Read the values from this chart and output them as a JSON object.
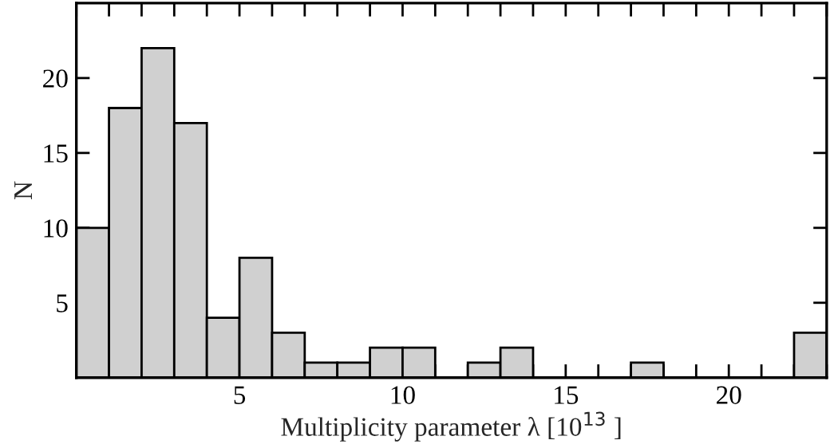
{
  "chart_data": {
    "type": "histogram",
    "bins": [
      0,
      1,
      2,
      3,
      4,
      5,
      6,
      7,
      8,
      9,
      10,
      11,
      12,
      13,
      14,
      15,
      16,
      17,
      18,
      19,
      20,
      21,
      22,
      23
    ],
    "values": [
      10,
      18,
      22,
      17,
      4,
      8,
      3,
      1,
      1,
      2,
      2,
      0,
      1,
      2,
      0,
      0,
      0,
      1,
      0,
      0,
      0,
      0,
      3
    ],
    "color": "#d0d0d0",
    "xlabel": "Multiplicity parameter λ [10$^{13}$ ]",
    "ylabel": "N",
    "xlim": [
      0,
      23
    ],
    "ylim": [
      0,
      25
    ],
    "xticks": [
      {
        "value": 0,
        "label": null
      },
      {
        "value": 1,
        "label": null
      },
      {
        "value": 2,
        "label": null
      },
      {
        "value": 3,
        "label": null
      },
      {
        "value": 4,
        "label": null
      },
      5,
      {
        "value": 6,
        "label": null
      },
      {
        "value": 7,
        "label": null
      },
      {
        "value": 8,
        "label": null
      },
      {
        "value": 9,
        "label": null
      },
      10,
      {
        "value": 11,
        "label": null
      },
      {
        "value": 12,
        "label": null
      },
      {
        "value": 13,
        "label": null
      },
      {
        "value": 14,
        "label": null
      },
      15,
      {
        "value": 16,
        "label": null
      },
      {
        "value": 17,
        "label": null
      },
      {
        "value": 18,
        "label": null
      },
      {
        "value": 19,
        "label": null
      },
      20,
      {
        "value": 21,
        "label": null
      },
      {
        "value": 22,
        "label": null
      },
      {
        "value": 23,
        "label": null
      }
    ],
    "yticks": [
      5,
      10,
      15,
      20
    ],
    "grid": false
  }
}
